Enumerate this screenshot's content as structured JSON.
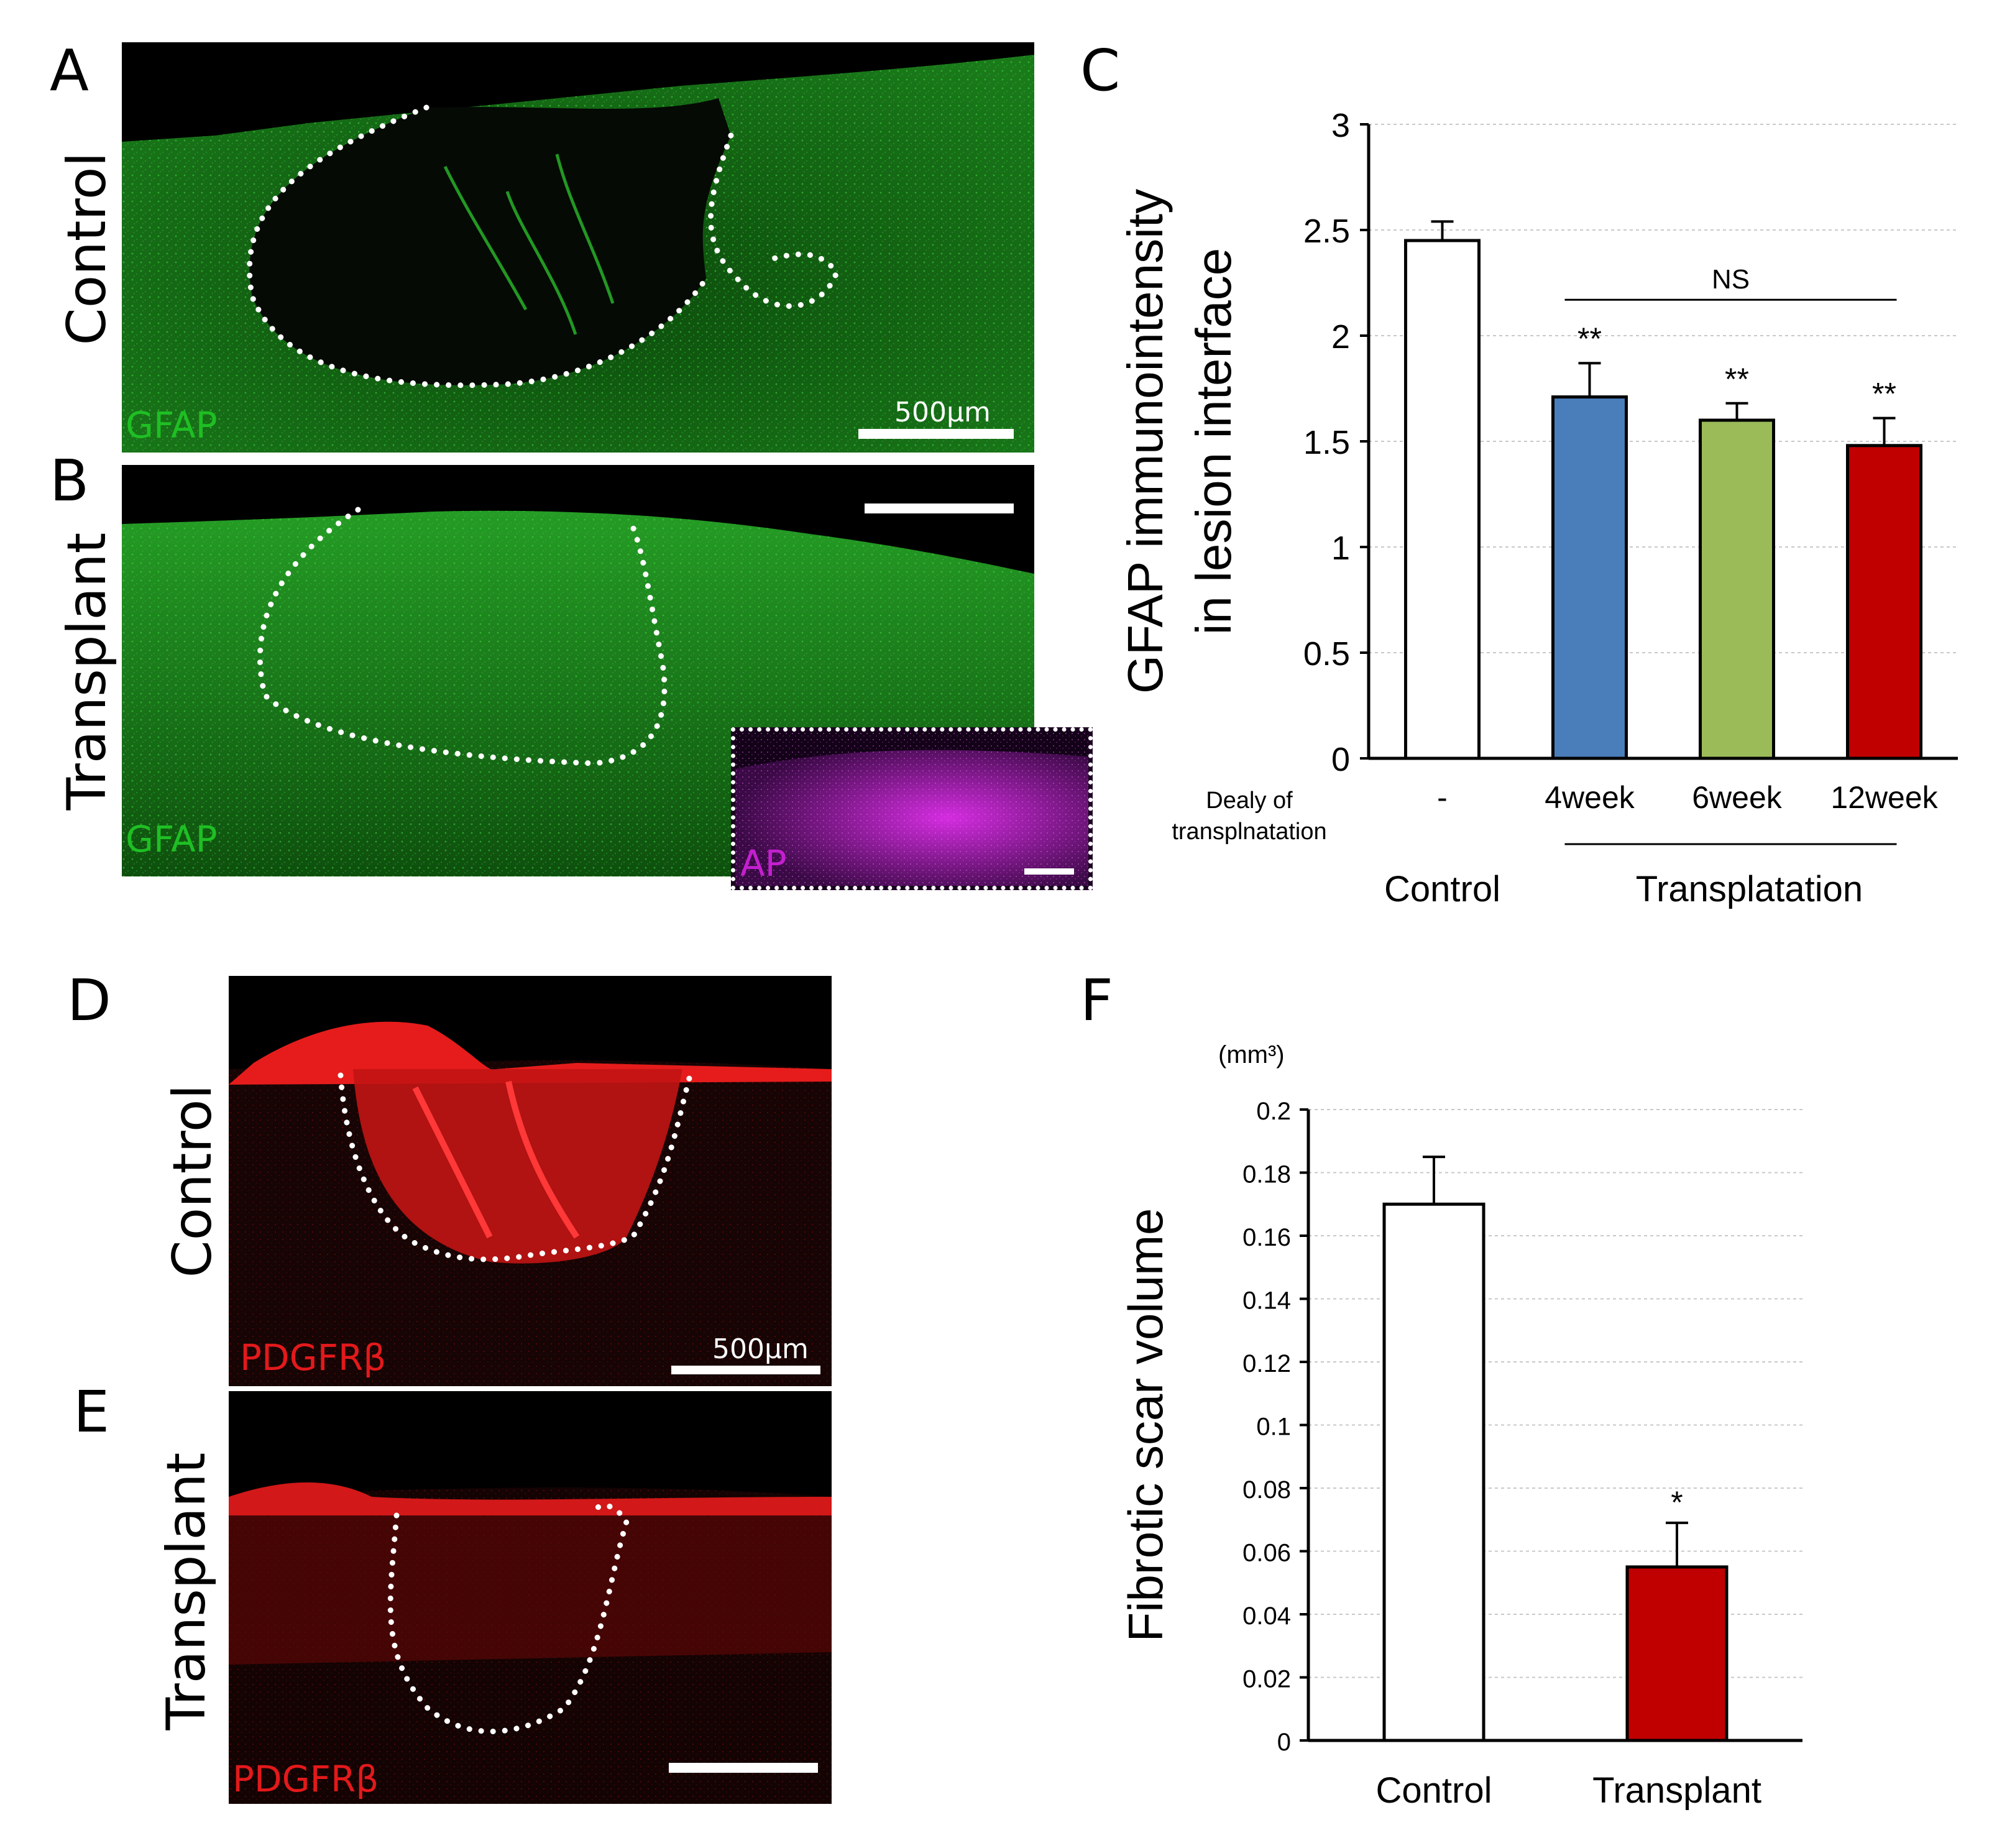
{
  "panels": {
    "A": {
      "letter": "A",
      "condition": "Control",
      "stain": "GFAP",
      "scale_label": "500µm",
      "color": "#1fbf24"
    },
    "B": {
      "letter": "B",
      "condition": "Transplant",
      "stain": "GFAP",
      "inset_stain": "AP",
      "color": "#1fbf24",
      "inset_color": "#c41fd0"
    },
    "C": {
      "letter": "C"
    },
    "D": {
      "letter": "D",
      "condition": "Control",
      "stain": "PDGFRβ",
      "scale_label": "500µm",
      "color": "#e3191b"
    },
    "E": {
      "letter": "E",
      "condition": "Transplant",
      "stain": "PDGFRβ",
      "color": "#e3191b"
    },
    "F": {
      "letter": "F"
    }
  },
  "chart_data": [
    {
      "id": "C",
      "type": "bar",
      "ylabel_line1": "GFAP immunointensity",
      "ylabel_line2": "in lesion interface",
      "ylim": [
        0,
        3
      ],
      "yticks": [
        "0",
        "0.5",
        "1",
        "1.5",
        "2",
        "2.5",
        "3"
      ],
      "grid": true,
      "row_label_line1": "Dealy of",
      "row_label_line2": "transplnatation",
      "categories": [
        "-",
        "4week",
        "6week",
        "12week"
      ],
      "values": [
        2.45,
        1.71,
        1.6,
        1.48
      ],
      "errors": [
        0.09,
        0.16,
        0.08,
        0.13
      ],
      "colors": [
        "#ffffff",
        "#4a7ebb",
        "#9bbb59",
        "#c00000"
      ],
      "significance": [
        "",
        "**",
        "**",
        "**"
      ],
      "bracket_label": "NS",
      "group_labels": [
        "Control",
        "Transplatation"
      ]
    },
    {
      "id": "F",
      "type": "bar",
      "unit": "(mm³)",
      "ylabel": "Fibrotic scar volume",
      "ylim": [
        0,
        0.2
      ],
      "yticks": [
        "0",
        "0.02",
        "0.04",
        "0.06",
        "0.08",
        "0.1",
        "0.12",
        "0.14",
        "0.16",
        "0.18",
        "0.2"
      ],
      "grid": true,
      "categories": [
        "Control",
        "Transplant"
      ],
      "values": [
        0.17,
        0.055
      ],
      "errors": [
        0.015,
        0.014
      ],
      "colors": [
        "#ffffff",
        "#c00000"
      ],
      "significance": [
        "",
        "*"
      ]
    }
  ]
}
